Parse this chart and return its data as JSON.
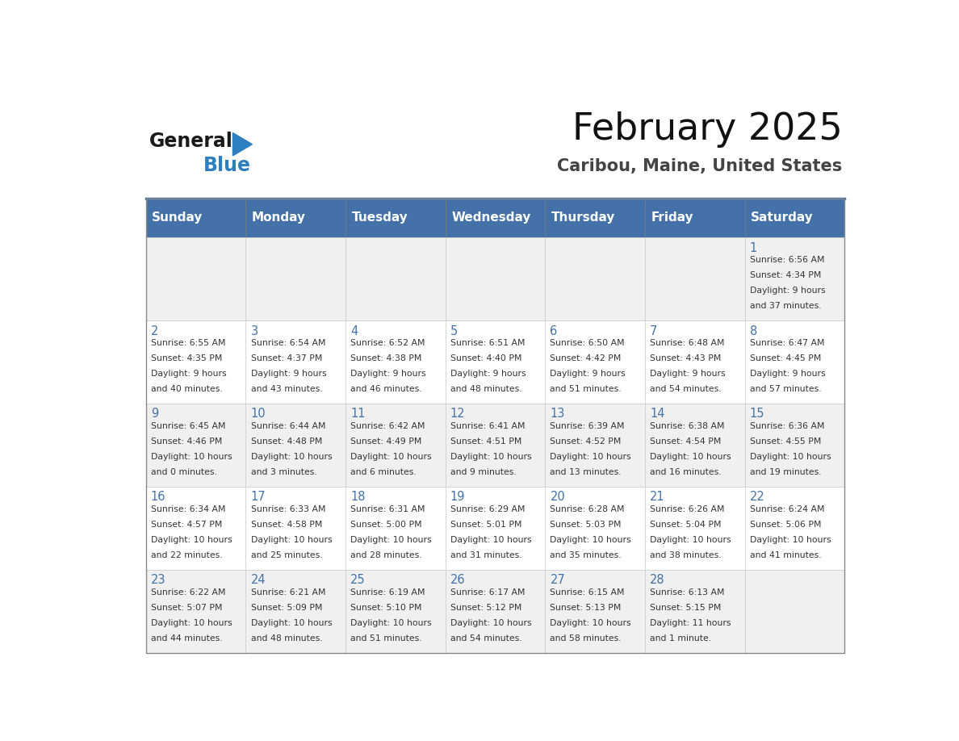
{
  "title": "February 2025",
  "subtitle": "Caribou, Maine, United States",
  "header_color": "#4472a8",
  "header_text_color": "#ffffff",
  "cell_bg_color": "#f0f0f0",
  "cell_bg_alt": "#ffffff",
  "day_number_color": "#4472a8",
  "text_color": "#333333",
  "days_of_week": [
    "Sunday",
    "Monday",
    "Tuesday",
    "Wednesday",
    "Thursday",
    "Friday",
    "Saturday"
  ],
  "weeks": [
    [
      null,
      null,
      null,
      null,
      null,
      null,
      1
    ],
    [
      2,
      3,
      4,
      5,
      6,
      7,
      8
    ],
    [
      9,
      10,
      11,
      12,
      13,
      14,
      15
    ],
    [
      16,
      17,
      18,
      19,
      20,
      21,
      22
    ],
    [
      23,
      24,
      25,
      26,
      27,
      28,
      null
    ]
  ],
  "day_data": {
    "1": {
      "sunrise": "6:56 AM",
      "sunset": "4:34 PM",
      "daylight": "9 hours and 37 minutes."
    },
    "2": {
      "sunrise": "6:55 AM",
      "sunset": "4:35 PM",
      "daylight": "9 hours and 40 minutes."
    },
    "3": {
      "sunrise": "6:54 AM",
      "sunset": "4:37 PM",
      "daylight": "9 hours and 43 minutes."
    },
    "4": {
      "sunrise": "6:52 AM",
      "sunset": "4:38 PM",
      "daylight": "9 hours and 46 minutes."
    },
    "5": {
      "sunrise": "6:51 AM",
      "sunset": "4:40 PM",
      "daylight": "9 hours and 48 minutes."
    },
    "6": {
      "sunrise": "6:50 AM",
      "sunset": "4:42 PM",
      "daylight": "9 hours and 51 minutes."
    },
    "7": {
      "sunrise": "6:48 AM",
      "sunset": "4:43 PM",
      "daylight": "9 hours and 54 minutes."
    },
    "8": {
      "sunrise": "6:47 AM",
      "sunset": "4:45 PM",
      "daylight": "9 hours and 57 minutes."
    },
    "9": {
      "sunrise": "6:45 AM",
      "sunset": "4:46 PM",
      "daylight": "10 hours and 0 minutes."
    },
    "10": {
      "sunrise": "6:44 AM",
      "sunset": "4:48 PM",
      "daylight": "10 hours and 3 minutes."
    },
    "11": {
      "sunrise": "6:42 AM",
      "sunset": "4:49 PM",
      "daylight": "10 hours and 6 minutes."
    },
    "12": {
      "sunrise": "6:41 AM",
      "sunset": "4:51 PM",
      "daylight": "10 hours and 9 minutes."
    },
    "13": {
      "sunrise": "6:39 AM",
      "sunset": "4:52 PM",
      "daylight": "10 hours and 13 minutes."
    },
    "14": {
      "sunrise": "6:38 AM",
      "sunset": "4:54 PM",
      "daylight": "10 hours and 16 minutes."
    },
    "15": {
      "sunrise": "6:36 AM",
      "sunset": "4:55 PM",
      "daylight": "10 hours and 19 minutes."
    },
    "16": {
      "sunrise": "6:34 AM",
      "sunset": "4:57 PM",
      "daylight": "10 hours and 22 minutes."
    },
    "17": {
      "sunrise": "6:33 AM",
      "sunset": "4:58 PM",
      "daylight": "10 hours and 25 minutes."
    },
    "18": {
      "sunrise": "6:31 AM",
      "sunset": "5:00 PM",
      "daylight": "10 hours and 28 minutes."
    },
    "19": {
      "sunrise": "6:29 AM",
      "sunset": "5:01 PM",
      "daylight": "10 hours and 31 minutes."
    },
    "20": {
      "sunrise": "6:28 AM",
      "sunset": "5:03 PM",
      "daylight": "10 hours and 35 minutes."
    },
    "21": {
      "sunrise": "6:26 AM",
      "sunset": "5:04 PM",
      "daylight": "10 hours and 38 minutes."
    },
    "22": {
      "sunrise": "6:24 AM",
      "sunset": "5:06 PM",
      "daylight": "10 hours and 41 minutes."
    },
    "23": {
      "sunrise": "6:22 AM",
      "sunset": "5:07 PM",
      "daylight": "10 hours and 44 minutes."
    },
    "24": {
      "sunrise": "6:21 AM",
      "sunset": "5:09 PM",
      "daylight": "10 hours and 48 minutes."
    },
    "25": {
      "sunrise": "6:19 AM",
      "sunset": "5:10 PM",
      "daylight": "10 hours and 51 minutes."
    },
    "26": {
      "sunrise": "6:17 AM",
      "sunset": "5:12 PM",
      "daylight": "10 hours and 54 minutes."
    },
    "27": {
      "sunrise": "6:15 AM",
      "sunset": "5:13 PM",
      "daylight": "10 hours and 58 minutes."
    },
    "28": {
      "sunrise": "6:13 AM",
      "sunset": "5:15 PM",
      "daylight": "11 hours and 1 minute."
    }
  },
  "logo_text_general": "General",
  "logo_text_blue": "Blue",
  "logo_color_general": "#1a1a1a",
  "logo_color_blue": "#2e7fc0",
  "logo_triangle_color": "#2e7fc0",
  "line_color": "#4472a8"
}
